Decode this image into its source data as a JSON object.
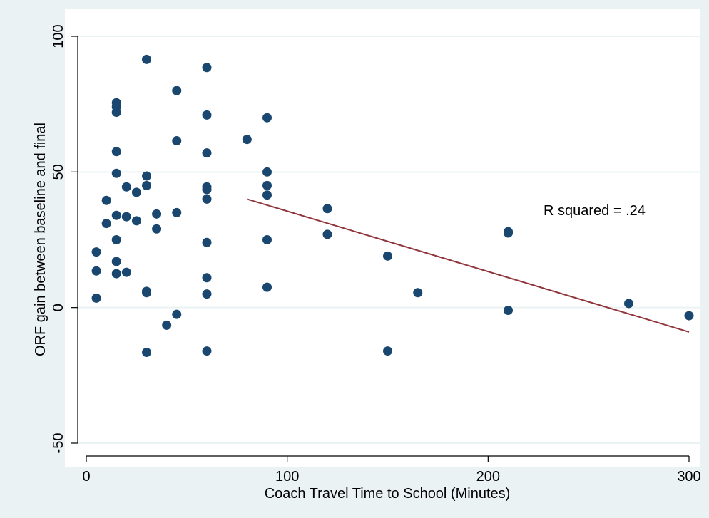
{
  "chart_data": {
    "type": "scatter",
    "title": "",
    "xlabel": "Coach Travel Time to School (Minutes)",
    "ylabel": "ORF gain between baseline and final",
    "xlim": [
      0,
      300
    ],
    "ylim": [
      -50,
      100
    ],
    "xticks": [
      0,
      100,
      200,
      300
    ],
    "yticks": [
      -50,
      0,
      50,
      100
    ],
    "xtick_labels": [
      "0",
      "100",
      "200",
      "300"
    ],
    "ytick_labels": [
      "-50",
      "0",
      "50",
      "100"
    ],
    "grid": "horizontal",
    "annotation": "R squared = .24",
    "colors": {
      "background": "#eaf2f3",
      "plot_area": "#ffffff",
      "marker": "#1a476f",
      "fit_line": "#90353b",
      "grid": "#eaf2f3"
    },
    "series": [
      {
        "type": "scatter",
        "points": [
          {
            "x": 5,
            "y": 20.5
          },
          {
            "x": 5,
            "y": 13.5
          },
          {
            "x": 5,
            "y": 3.5
          },
          {
            "x": 10,
            "y": 39.5
          },
          {
            "x": 10,
            "y": 31
          },
          {
            "x": 15,
            "y": 75.5
          },
          {
            "x": 15,
            "y": 74
          },
          {
            "x": 15,
            "y": 72
          },
          {
            "x": 15,
            "y": 57.5
          },
          {
            "x": 15,
            "y": 49.5
          },
          {
            "x": 15,
            "y": 34
          },
          {
            "x": 15,
            "y": 25
          },
          {
            "x": 15,
            "y": 17
          },
          {
            "x": 15,
            "y": 12.5
          },
          {
            "x": 20,
            "y": 44.5
          },
          {
            "x": 20,
            "y": 33.5
          },
          {
            "x": 20,
            "y": 13
          },
          {
            "x": 25,
            "y": 42.5
          },
          {
            "x": 25,
            "y": 32
          },
          {
            "x": 30,
            "y": 91.5
          },
          {
            "x": 30,
            "y": 48.5
          },
          {
            "x": 30,
            "y": 45
          },
          {
            "x": 30,
            "y": 6
          },
          {
            "x": 30,
            "y": 5.5
          },
          {
            "x": 30,
            "y": -16.5
          },
          {
            "x": 35,
            "y": 34.5
          },
          {
            "x": 35,
            "y": 29
          },
          {
            "x": 40,
            "y": -6.5
          },
          {
            "x": 45,
            "y": 80
          },
          {
            "x": 45,
            "y": 61.5
          },
          {
            "x": 45,
            "y": 35
          },
          {
            "x": 45,
            "y": -2.5
          },
          {
            "x": 60,
            "y": 88.5
          },
          {
            "x": 60,
            "y": 71
          },
          {
            "x": 60,
            "y": 57
          },
          {
            "x": 60,
            "y": 44.5
          },
          {
            "x": 60,
            "y": 43.5
          },
          {
            "x": 60,
            "y": 40
          },
          {
            "x": 60,
            "y": 24
          },
          {
            "x": 60,
            "y": 11
          },
          {
            "x": 60,
            "y": 5
          },
          {
            "x": 60,
            "y": -16
          },
          {
            "x": 80,
            "y": 62
          },
          {
            "x": 90,
            "y": 70
          },
          {
            "x": 90,
            "y": 50
          },
          {
            "x": 90,
            "y": 45
          },
          {
            "x": 90,
            "y": 41.5
          },
          {
            "x": 90,
            "y": 25
          },
          {
            "x": 90,
            "y": 7.5
          },
          {
            "x": 120,
            "y": 36.5
          },
          {
            "x": 120,
            "y": 27
          },
          {
            "x": 150,
            "y": 19
          },
          {
            "x": 150,
            "y": -16
          },
          {
            "x": 165,
            "y": 5.5
          },
          {
            "x": 210,
            "y": 28
          },
          {
            "x": 210,
            "y": 27.5
          },
          {
            "x": 210,
            "y": -1
          },
          {
            "x": 270,
            "y": 1.5
          },
          {
            "x": 300,
            "y": -3
          }
        ]
      },
      {
        "type": "line",
        "points": [
          {
            "x": 80,
            "y": 40
          },
          {
            "x": 300,
            "y": -9
          }
        ]
      }
    ]
  }
}
